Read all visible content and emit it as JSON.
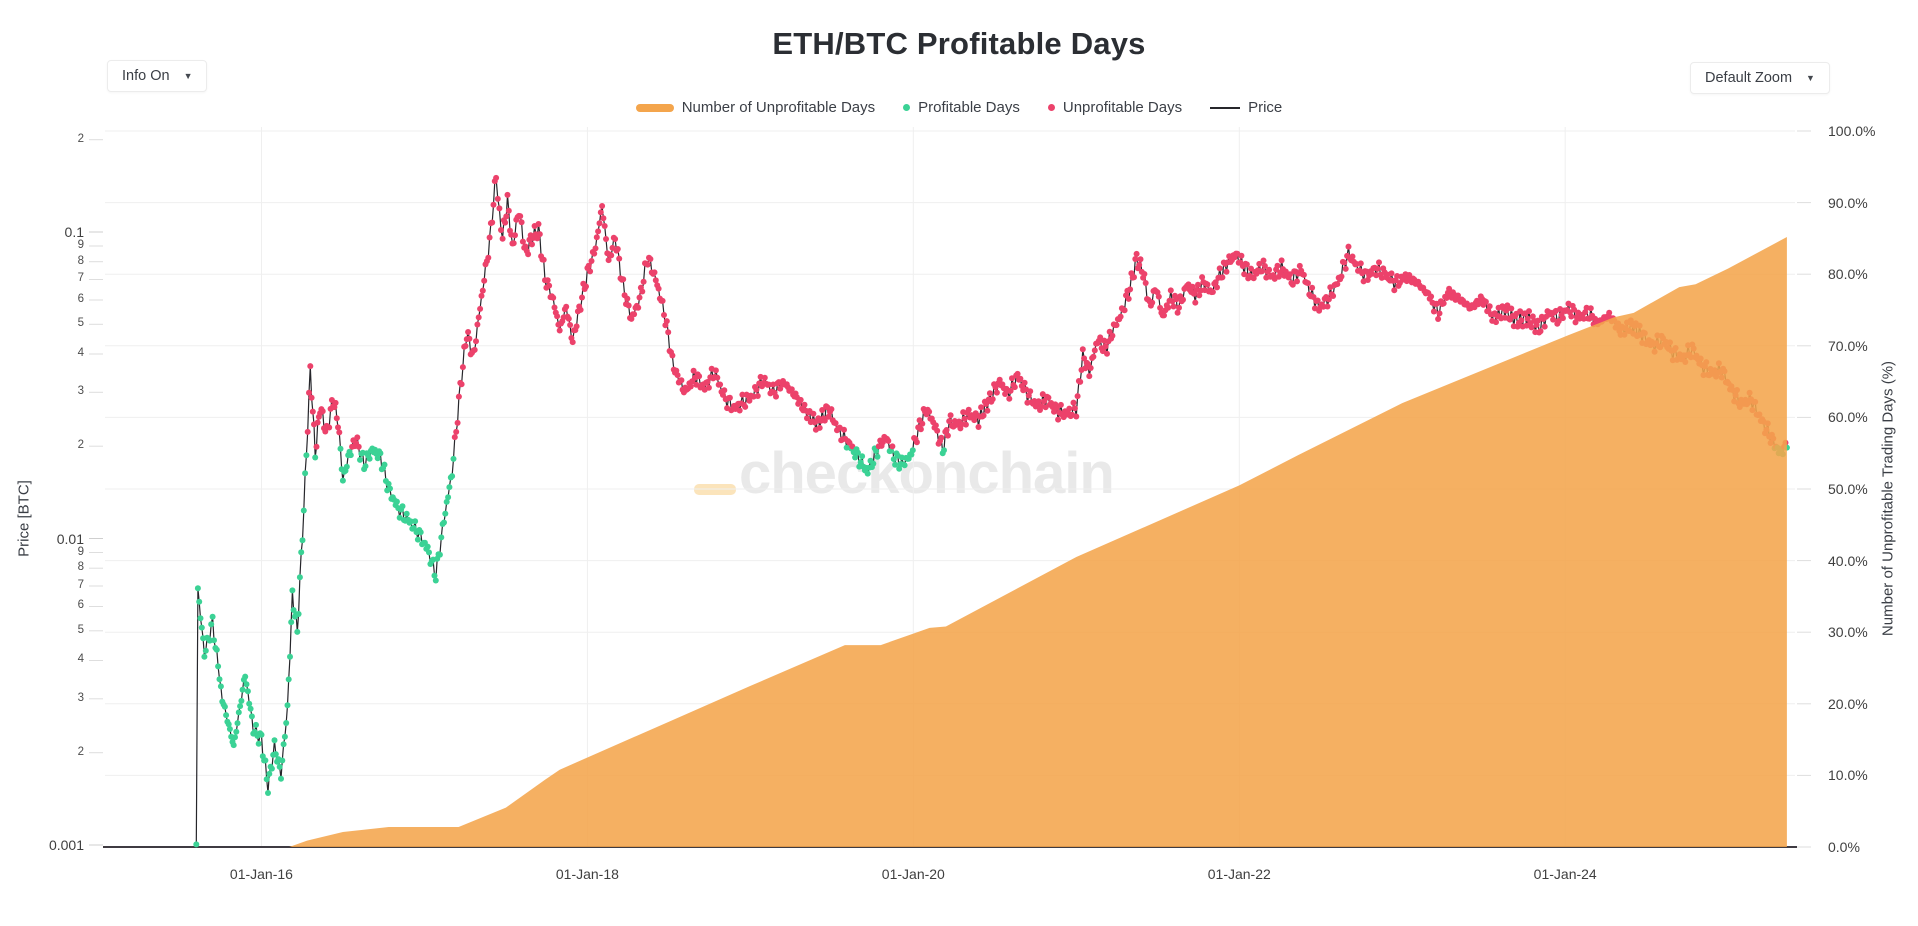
{
  "title": "ETH/BTC Profitable Days",
  "controls": {
    "info_dropdown": "Info On",
    "zoom_dropdown": "Default Zoom",
    "caret": "▼"
  },
  "watermark": "checkonchain",
  "colors": {
    "unprofitable_area": "#F4A54C",
    "profitable_dot": "#3BD295",
    "unprofitable_dot": "#EC426B",
    "price_line": "#26262b",
    "gridline": "#efefef",
    "axis_line": "#3f3b42",
    "watermark_text": "#e9e9e9",
    "watermark_underscore": "#fbe4bb"
  },
  "legend": [
    {
      "label": "Number of Unprofitable Days",
      "type": "band",
      "color": "#F4A54C"
    },
    {
      "label": "Profitable Days",
      "type": "dot",
      "color": "#3BD295"
    },
    {
      "label": "Unprofitable Days",
      "type": "dot",
      "color": "#EC426B"
    },
    {
      "label": "Price",
      "type": "line",
      "color": "#26262b"
    }
  ],
  "chart_data": {
    "type": "mixed",
    "title": "ETH/BTC Profitable Days",
    "x_axis": {
      "domain_years": [
        2015.04,
        2025.41
      ],
      "ticks": [
        {
          "t": 2016.0,
          "label": "01-Jan-16"
        },
        {
          "t": 2018.0,
          "label": "01-Jan-18"
        },
        {
          "t": 2020.0,
          "label": "01-Jan-20"
        },
        {
          "t": 2022.0,
          "label": "01-Jan-22"
        },
        {
          "t": 2024.0,
          "label": "01-Jan-24"
        }
      ],
      "grid": true
    },
    "price_axis": {
      "label": "Price [BTC]",
      "scale": "log",
      "range": [
        0.001,
        0.22
      ],
      "ticks": [
        {
          "v": 0.2,
          "label": "2",
          "minor": true
        },
        {
          "v": 0.1,
          "label": "0.1",
          "minor": false
        },
        {
          "v": 0.09,
          "label": "9",
          "minor": true
        },
        {
          "v": 0.08,
          "label": "8",
          "minor": true
        },
        {
          "v": 0.07,
          "label": "7",
          "minor": true
        },
        {
          "v": 0.06,
          "label": "6",
          "minor": true
        },
        {
          "v": 0.05,
          "label": "5",
          "minor": true
        },
        {
          "v": 0.04,
          "label": "4",
          "minor": true
        },
        {
          "v": 0.03,
          "label": "3",
          "minor": true
        },
        {
          "v": 0.02,
          "label": "2",
          "minor": true
        },
        {
          "v": 0.01,
          "label": "0.01",
          "minor": false
        },
        {
          "v": 0.009,
          "label": "9",
          "minor": true
        },
        {
          "v": 0.008,
          "label": "8",
          "minor": true
        },
        {
          "v": 0.007,
          "label": "7",
          "minor": true
        },
        {
          "v": 0.006,
          "label": "6",
          "minor": true
        },
        {
          "v": 0.005,
          "label": "5",
          "minor": true
        },
        {
          "v": 0.004,
          "label": "4",
          "minor": true
        },
        {
          "v": 0.003,
          "label": "3",
          "minor": true
        },
        {
          "v": 0.002,
          "label": "2",
          "minor": true
        },
        {
          "v": 0.001,
          "label": "0.001",
          "minor": false
        }
      ]
    },
    "pct_axis": {
      "label": "Number of Unprofitable Trading Days (%)",
      "range": [
        0,
        100
      ],
      "ticks": [
        {
          "p": 0,
          "label": "0.0%"
        },
        {
          "p": 10,
          "label": "10.0%"
        },
        {
          "p": 20,
          "label": "20.0%"
        },
        {
          "p": 30,
          "label": "30.0%"
        },
        {
          "p": 40,
          "label": "40.0%"
        },
        {
          "p": 50,
          "label": "50.0%"
        },
        {
          "p": 60,
          "label": "60.0%"
        },
        {
          "p": 70,
          "label": "70.0%"
        },
        {
          "p": 80,
          "label": "80.0%"
        },
        {
          "p": 90,
          "label": "90.0%"
        },
        {
          "p": 100,
          "label": "100.0%"
        }
      ],
      "grid": true
    },
    "series": {
      "unprofitable_days_pct": {
        "name": "Number of Unprofitable Days",
        "axis": "pct",
        "style": "filled-area",
        "points": [
          [
            2015.6,
            0
          ],
          [
            2016.17,
            0
          ],
          [
            2016.28,
            0.9
          ],
          [
            2016.5,
            2.1
          ],
          [
            2016.78,
            2.8
          ],
          [
            2017.21,
            2.8
          ],
          [
            2017.5,
            5.5
          ],
          [
            2017.74,
            9.4
          ],
          [
            2017.83,
            10.8
          ],
          [
            2018.5,
            17.5
          ],
          [
            2019.0,
            22.5
          ],
          [
            2019.58,
            28.2
          ],
          [
            2019.8,
            28.2
          ],
          [
            2020.1,
            30.6
          ],
          [
            2020.2,
            30.8
          ],
          [
            2021.0,
            40.5
          ],
          [
            2022.0,
            50.5
          ],
          [
            2022.36,
            54.7
          ],
          [
            2023.0,
            62.0
          ],
          [
            2024.02,
            71.5
          ],
          [
            2024.3,
            74.0
          ],
          [
            2024.42,
            74.6
          ],
          [
            2024.7,
            78.2
          ],
          [
            2024.8,
            78.6
          ],
          [
            2025.0,
            80.8
          ],
          [
            2025.36,
            85.2
          ]
        ]
      },
      "price": {
        "name": "Price",
        "axis": "price",
        "style": "line-with-daily-markers",
        "profit_threshold_btc": 0.0199,
        "points": [
          [
            2015.6,
            0.00102
          ],
          [
            2015.61,
            0.0068
          ],
          [
            2015.65,
            0.0042
          ],
          [
            2015.7,
            0.0053
          ],
          [
            2015.76,
            0.003
          ],
          [
            2015.83,
            0.0021
          ],
          [
            2015.9,
            0.0036
          ],
          [
            2015.95,
            0.0024
          ],
          [
            2016.0,
            0.0022
          ],
          [
            2016.04,
            0.00155
          ],
          [
            2016.08,
            0.0021
          ],
          [
            2016.12,
            0.0017
          ],
          [
            2016.16,
            0.0028
          ],
          [
            2016.19,
            0.0065
          ],
          [
            2016.22,
            0.005
          ],
          [
            2016.26,
            0.0125
          ],
          [
            2016.3,
            0.0355
          ],
          [
            2016.33,
            0.019
          ],
          [
            2016.36,
            0.027
          ],
          [
            2016.4,
            0.022
          ],
          [
            2016.44,
            0.0285
          ],
          [
            2016.47,
            0.024
          ],
          [
            2016.5,
            0.0155
          ],
          [
            2016.54,
            0.019
          ],
          [
            2016.58,
            0.021
          ],
          [
            2016.63,
            0.0175
          ],
          [
            2016.68,
            0.0195
          ],
          [
            2016.73,
            0.0185
          ],
          [
            2016.78,
            0.0145
          ],
          [
            2016.84,
            0.0125
          ],
          [
            2016.9,
            0.0115
          ],
          [
            2016.96,
            0.0105
          ],
          [
            2017.02,
            0.0092
          ],
          [
            2017.07,
            0.0076
          ],
          [
            2017.12,
            0.0115
          ],
          [
            2017.17,
            0.0165
          ],
          [
            2017.22,
            0.031
          ],
          [
            2017.26,
            0.047
          ],
          [
            2017.3,
            0.039
          ],
          [
            2017.35,
            0.061
          ],
          [
            2017.4,
            0.093
          ],
          [
            2017.44,
            0.152
          ],
          [
            2017.46,
            0.118
          ],
          [
            2017.48,
            0.096
          ],
          [
            2017.51,
            0.126
          ],
          [
            2017.54,
            0.089
          ],
          [
            2017.58,
            0.118
          ],
          [
            2017.62,
            0.085
          ],
          [
            2017.66,
            0.096
          ],
          [
            2017.7,
            0.102
          ],
          [
            2017.74,
            0.071
          ],
          [
            2017.79,
            0.06
          ],
          [
            2017.83,
            0.048
          ],
          [
            2017.87,
            0.057
          ],
          [
            2017.91,
            0.044
          ],
          [
            2017.95,
            0.056
          ],
          [
            2018.0,
            0.073
          ],
          [
            2018.05,
            0.089
          ],
          [
            2018.09,
            0.122
          ],
          [
            2018.13,
            0.08
          ],
          [
            2018.17,
            0.096
          ],
          [
            2018.22,
            0.066
          ],
          [
            2018.27,
            0.052
          ],
          [
            2018.32,
            0.06
          ],
          [
            2018.37,
            0.083
          ],
          [
            2018.42,
            0.07
          ],
          [
            2018.47,
            0.055
          ],
          [
            2018.53,
            0.036
          ],
          [
            2018.6,
            0.03
          ],
          [
            2018.66,
            0.034
          ],
          [
            2018.72,
            0.031
          ],
          [
            2018.78,
            0.035
          ],
          [
            2018.84,
            0.029
          ],
          [
            2018.9,
            0.0265
          ],
          [
            2018.96,
            0.028
          ],
          [
            2019.02,
            0.0295
          ],
          [
            2019.08,
            0.033
          ],
          [
            2019.14,
            0.03
          ],
          [
            2019.2,
            0.0325
          ],
          [
            2019.27,
            0.0295
          ],
          [
            2019.34,
            0.026
          ],
          [
            2019.41,
            0.0235
          ],
          [
            2019.48,
            0.0265
          ],
          [
            2019.54,
            0.0225
          ],
          [
            2019.6,
            0.0205
          ],
          [
            2019.66,
            0.0185
          ],
          [
            2019.72,
            0.0165
          ],
          [
            2019.78,
            0.0195
          ],
          [
            2019.83,
            0.0215
          ],
          [
            2019.88,
            0.0185
          ],
          [
            2019.93,
            0.0175
          ],
          [
            2019.98,
            0.0185
          ],
          [
            2020.03,
            0.0225
          ],
          [
            2020.08,
            0.0265
          ],
          [
            2020.13,
            0.0235
          ],
          [
            2020.18,
            0.0195
          ],
          [
            2020.22,
            0.024
          ],
          [
            2020.28,
            0.0235
          ],
          [
            2020.34,
            0.0255
          ],
          [
            2020.4,
            0.0245
          ],
          [
            2020.47,
            0.0285
          ],
          [
            2020.53,
            0.0325
          ],
          [
            2020.58,
            0.0295
          ],
          [
            2020.64,
            0.034
          ],
          [
            2020.7,
            0.0295
          ],
          [
            2020.76,
            0.027
          ],
          [
            2020.82,
            0.0285
          ],
          [
            2020.88,
            0.026
          ],
          [
            2020.94,
            0.0255
          ],
          [
            2021.0,
            0.0265
          ],
          [
            2021.04,
            0.0395
          ],
          [
            2021.08,
            0.035
          ],
          [
            2021.13,
            0.0445
          ],
          [
            2021.18,
            0.0415
          ],
          [
            2021.23,
            0.0485
          ],
          [
            2021.28,
            0.0545
          ],
          [
            2021.33,
            0.066
          ],
          [
            2021.37,
            0.082
          ],
          [
            2021.41,
            0.074
          ],
          [
            2021.45,
            0.057
          ],
          [
            2021.49,
            0.066
          ],
          [
            2021.53,
            0.0525
          ],
          [
            2021.58,
            0.0615
          ],
          [
            2021.63,
            0.057
          ],
          [
            2021.68,
            0.0675
          ],
          [
            2021.73,
            0.062
          ],
          [
            2021.78,
            0.0685
          ],
          [
            2021.83,
            0.0635
          ],
          [
            2021.88,
            0.072
          ],
          [
            2021.93,
            0.0795
          ],
          [
            2021.98,
            0.0845
          ],
          [
            2022.03,
            0.077
          ],
          [
            2022.08,
            0.0715
          ],
          [
            2022.14,
            0.0775
          ],
          [
            2022.2,
            0.0715
          ],
          [
            2022.26,
            0.0765
          ],
          [
            2022.32,
            0.0695
          ],
          [
            2022.38,
            0.0755
          ],
          [
            2022.43,
            0.0645
          ],
          [
            2022.49,
            0.0565
          ],
          [
            2022.55,
            0.061
          ],
          [
            2022.61,
            0.0695
          ],
          [
            2022.67,
            0.0855
          ],
          [
            2022.72,
            0.0775
          ],
          [
            2022.78,
            0.0715
          ],
          [
            2022.84,
            0.076
          ],
          [
            2022.9,
            0.0725
          ],
          [
            2022.96,
            0.068
          ],
          [
            2023.02,
            0.0715
          ],
          [
            2023.09,
            0.0685
          ],
          [
            2023.16,
            0.0625
          ],
          [
            2023.22,
            0.0545
          ],
          [
            2023.28,
            0.0635
          ],
          [
            2023.35,
            0.0605
          ],
          [
            2023.42,
            0.0565
          ],
          [
            2023.49,
            0.0605
          ],
          [
            2023.56,
            0.0525
          ],
          [
            2023.63,
            0.0555
          ],
          [
            2023.7,
            0.0515
          ],
          [
            2023.77,
            0.0525
          ],
          [
            2023.84,
            0.0485
          ],
          [
            2023.9,
            0.0545
          ],
          [
            2023.96,
            0.0525
          ],
          [
            2024.02,
            0.0565
          ],
          [
            2024.08,
            0.0525
          ],
          [
            2024.14,
            0.0545
          ],
          [
            2024.2,
            0.0505
          ],
          [
            2024.27,
            0.0535
          ],
          [
            2024.34,
            0.0475
          ],
          [
            2024.41,
            0.0495
          ],
          [
            2024.48,
            0.0455
          ],
          [
            2024.54,
            0.0425
          ],
          [
            2024.6,
            0.0445
          ],
          [
            2024.66,
            0.0405
          ],
          [
            2024.72,
            0.0385
          ],
          [
            2024.78,
            0.0415
          ],
          [
            2024.84,
            0.0365
          ],
          [
            2024.9,
            0.0345
          ],
          [
            2024.96,
            0.0355
          ],
          [
            2025.02,
            0.0305
          ],
          [
            2025.08,
            0.0275
          ],
          [
            2025.14,
            0.0285
          ],
          [
            2025.2,
            0.0245
          ],
          [
            2025.26,
            0.0215
          ],
          [
            2025.31,
            0.0192
          ],
          [
            2025.36,
            0.0198
          ]
        ]
      }
    }
  }
}
